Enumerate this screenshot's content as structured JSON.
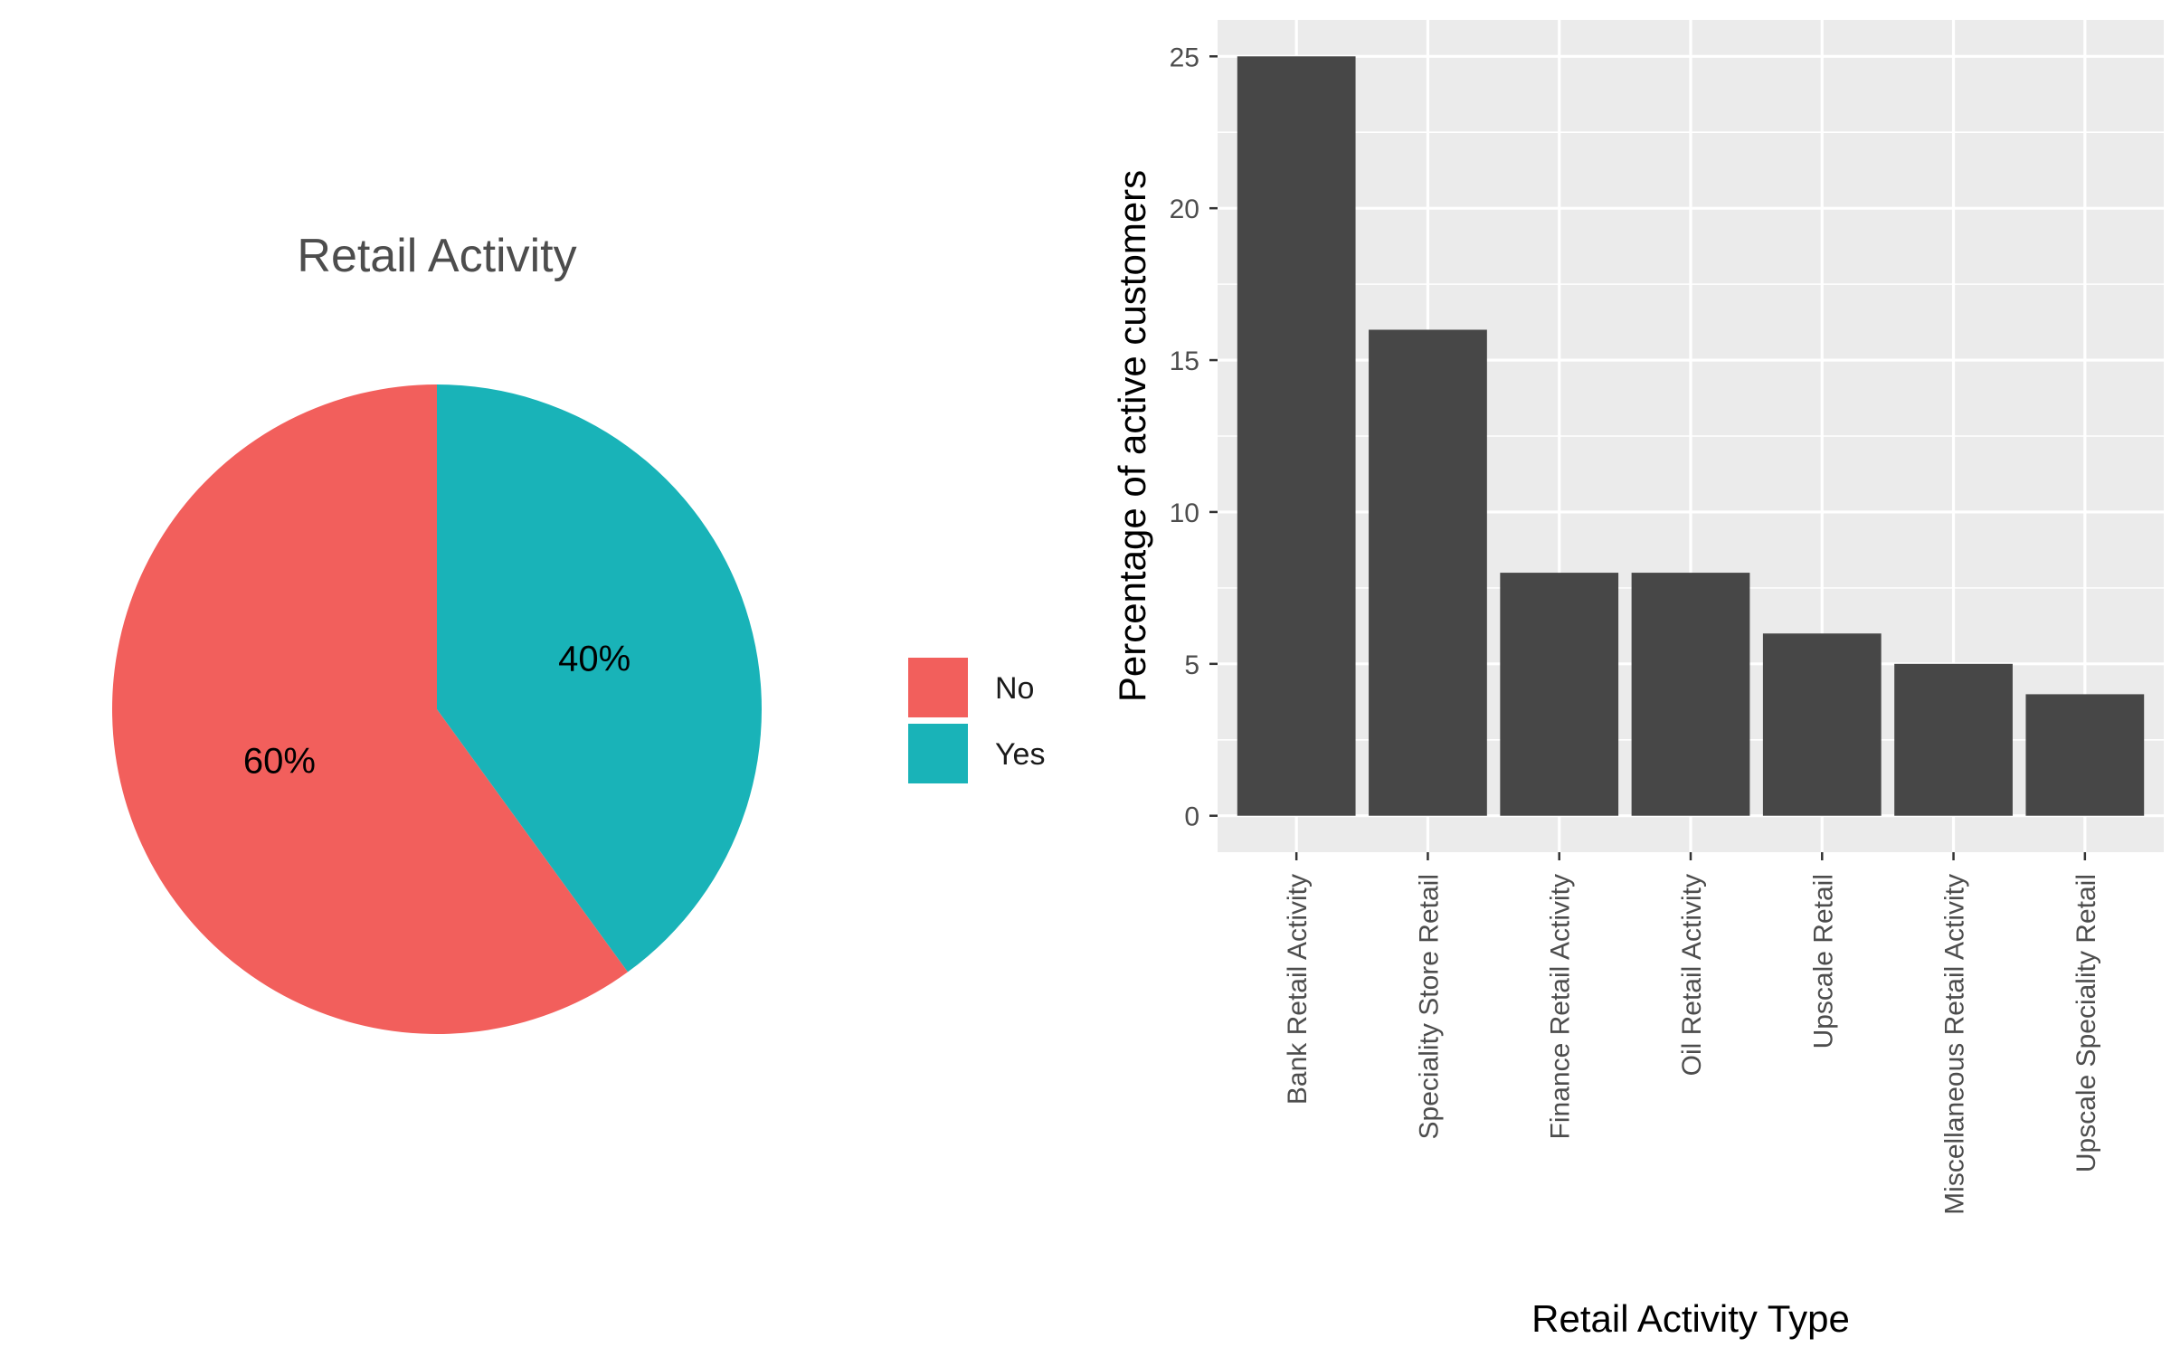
{
  "chart_data": [
    {
      "type": "pie",
      "title": "Retail Activity",
      "categories": [
        "No",
        "Yes"
      ],
      "values": [
        60,
        40
      ],
      "labels": [
        "60%",
        "40%"
      ],
      "colors": [
        "#F25F5C",
        "#19B3B8"
      ],
      "legend": {
        "position": "right",
        "entries": [
          "No",
          "Yes"
        ]
      }
    },
    {
      "type": "bar",
      "title": "",
      "categories": [
        "Bank Retail Activity",
        "Speciality Store Retail",
        "Finance Retail Activity",
        "Oil Retail Activity",
        "Upscale Retail",
        "Miscellaneous Retail Activity",
        "Upscale Speciality Retail"
      ],
      "values": [
        25,
        16,
        8,
        8,
        6,
        5,
        4
      ],
      "xlabel": "Retail Activity Type",
      "ylabel": "Percentage of active customers",
      "ylim": [
        0,
        26.2
      ],
      "yticks": [
        0,
        5,
        10,
        15,
        20,
        25
      ],
      "ytick_labels": [
        "0",
        "5",
        "10",
        "15",
        "20",
        "25"
      ],
      "grid": true,
      "bar_color": "#474747",
      "panel_background": "#EBEBEB"
    }
  ]
}
